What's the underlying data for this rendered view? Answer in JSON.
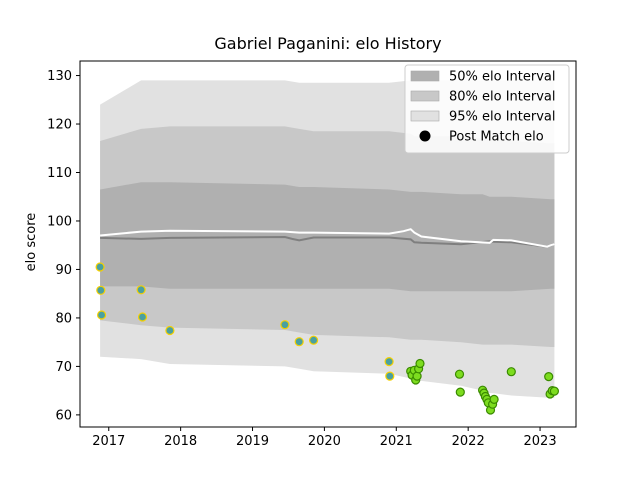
{
  "chart_data": {
    "type": "area",
    "title": "Gabriel Paganini: elo History",
    "xlabel": "",
    "ylabel": "elo score",
    "xlim": [
      2016.6,
      2023.5
    ],
    "ylim": [
      57.5,
      133
    ],
    "x_ticks": [
      2017,
      2018,
      2019,
      2020,
      2021,
      2022,
      2023
    ],
    "y_ticks": [
      60,
      70,
      80,
      90,
      100,
      110,
      120,
      130
    ],
    "grid": false,
    "legend_position": "top-right",
    "legend": [
      {
        "label": "50% elo Interval",
        "type": "band",
        "color": "#b0b0b0"
      },
      {
        "label": "80% elo Interval",
        "type": "band",
        "color": "#c8c8c8"
      },
      {
        "label": "95% elo Interval",
        "type": "band",
        "color": "#e1e1e1"
      },
      {
        "label": "Post Match elo",
        "type": "marker",
        "color": "#000000"
      }
    ],
    "bands": {
      "x": [
        2016.88,
        2017.45,
        2017.85,
        2019.45,
        2019.65,
        2019.85,
        2020.9,
        2021.2,
        2021.25,
        2021.3,
        2021.35,
        2021.9,
        2022.2,
        2022.3,
        2022.35,
        2022.6,
        2023.15,
        2023.2
      ],
      "b95_upper": [
        124,
        129,
        129,
        129,
        128.5,
        128.5,
        128.5,
        129,
        129,
        129,
        129,
        129,
        129,
        129,
        129,
        129,
        129,
        129
      ],
      "b95_lower": [
        72,
        71.5,
        70.5,
        70,
        69.5,
        69,
        68.5,
        67.5,
        67.5,
        67,
        67,
        66,
        65,
        64.5,
        64.5,
        64,
        63.5,
        63.5
      ],
      "b80_upper": [
        116.5,
        119,
        119.5,
        119.5,
        119,
        118.5,
        118.5,
        118,
        117.5,
        117.5,
        117.5,
        117.5,
        117,
        117,
        117,
        116.5,
        116,
        116
      ],
      "b80_lower": [
        79.5,
        78.5,
        78,
        77.5,
        77,
        76.5,
        76,
        75.5,
        75.5,
        75.5,
        75.5,
        75,
        74.5,
        74.5,
        74.5,
        74.5,
        74,
        74
      ],
      "b50_upper": [
        106.5,
        108,
        108,
        107.5,
        107,
        107,
        106.5,
        106,
        106,
        106,
        106,
        105.5,
        105.5,
        105,
        105,
        105,
        104.5,
        104.5
      ],
      "b50_lower": [
        86.5,
        86.5,
        86,
        86,
        86,
        86,
        86,
        85.5,
        85.5,
        85.5,
        85.5,
        85.5,
        85.5,
        85.5,
        85.5,
        85.5,
        86,
        86
      ]
    },
    "median_line": {
      "x": [
        2016.88,
        2017.45,
        2017.85,
        2019.45,
        2019.55,
        2019.65,
        2019.85,
        2020.9,
        2021.2,
        2021.25,
        2021.35,
        2021.9,
        2022.3,
        2022.35,
        2022.6,
        2023.1,
        2023.15,
        2023.2
      ],
      "y": [
        96.5,
        96.3,
        96.5,
        96.7,
        96.3,
        96,
        96.6,
        96.6,
        96.2,
        95.6,
        95.5,
        95.2,
        95.8,
        95.7,
        95.6,
        94.7,
        95,
        95.2
      ]
    },
    "mean_line": {
      "x": [
        2016.88,
        2017.45,
        2017.85,
        2019.45,
        2019.65,
        2019.85,
        2020.9,
        2021.1,
        2021.2,
        2021.25,
        2021.35,
        2021.9,
        2022.3,
        2022.35,
        2022.6,
        2023.1,
        2023.15,
        2023.2
      ],
      "y": [
        97,
        97.8,
        98,
        97.8,
        97.6,
        97.6,
        97.4,
        97.9,
        98.3,
        97.6,
        96.8,
        95.8,
        95.5,
        96.1,
        96,
        94.7,
        95,
        95.2
      ]
    },
    "post_match_elo": [
      {
        "x": 2016.88,
        "y": 90.5
      },
      {
        "x": 2016.89,
        "y": 85.7
      },
      {
        "x": 2016.9,
        "y": 80.6
      },
      {
        "x": 2017.45,
        "y": 85.8
      },
      {
        "x": 2017.47,
        "y": 80.2
      },
      {
        "x": 2017.85,
        "y": 77.4
      },
      {
        "x": 2019.45,
        "y": 78.6
      },
      {
        "x": 2019.65,
        "y": 75.1
      },
      {
        "x": 2019.85,
        "y": 75.4
      },
      {
        "x": 2020.9,
        "y": 71
      },
      {
        "x": 2020.91,
        "y": 68
      },
      {
        "x": 2021.2,
        "y": 69
      },
      {
        "x": 2021.22,
        "y": 68.2
      },
      {
        "x": 2021.25,
        "y": 69.2
      },
      {
        "x": 2021.27,
        "y": 67.2
      },
      {
        "x": 2021.29,
        "y": 68
      },
      {
        "x": 2021.31,
        "y": 69.5
      },
      {
        "x": 2021.33,
        "y": 70.6
      },
      {
        "x": 2021.88,
        "y": 68.4
      },
      {
        "x": 2021.89,
        "y": 64.7
      },
      {
        "x": 2022.2,
        "y": 65.1
      },
      {
        "x": 2022.22,
        "y": 64.5
      },
      {
        "x": 2022.24,
        "y": 63.8
      },
      {
        "x": 2022.26,
        "y": 63.2
      },
      {
        "x": 2022.28,
        "y": 62.5
      },
      {
        "x": 2022.31,
        "y": 61
      },
      {
        "x": 2022.34,
        "y": 62.2
      },
      {
        "x": 2022.36,
        "y": 63.2
      },
      {
        "x": 2022.6,
        "y": 68.9
      },
      {
        "x": 2023.12,
        "y": 67.9
      },
      {
        "x": 2023.14,
        "y": 64.3
      },
      {
        "x": 2023.17,
        "y": 65
      },
      {
        "x": 2023.2,
        "y": 64.9
      }
    ],
    "colors": {
      "band95": "#e1e1e1",
      "band80": "#c8c8c8",
      "band50": "#b0b0b0",
      "median_line": "#7f7f7f",
      "mean_line": "#ffffff",
      "point_fill_early": "#4aa0a0",
      "point_edge_early": "#f5d000",
      "point_fill_late": "#7ddc1f",
      "point_edge_late": "#3a8a00"
    }
  }
}
